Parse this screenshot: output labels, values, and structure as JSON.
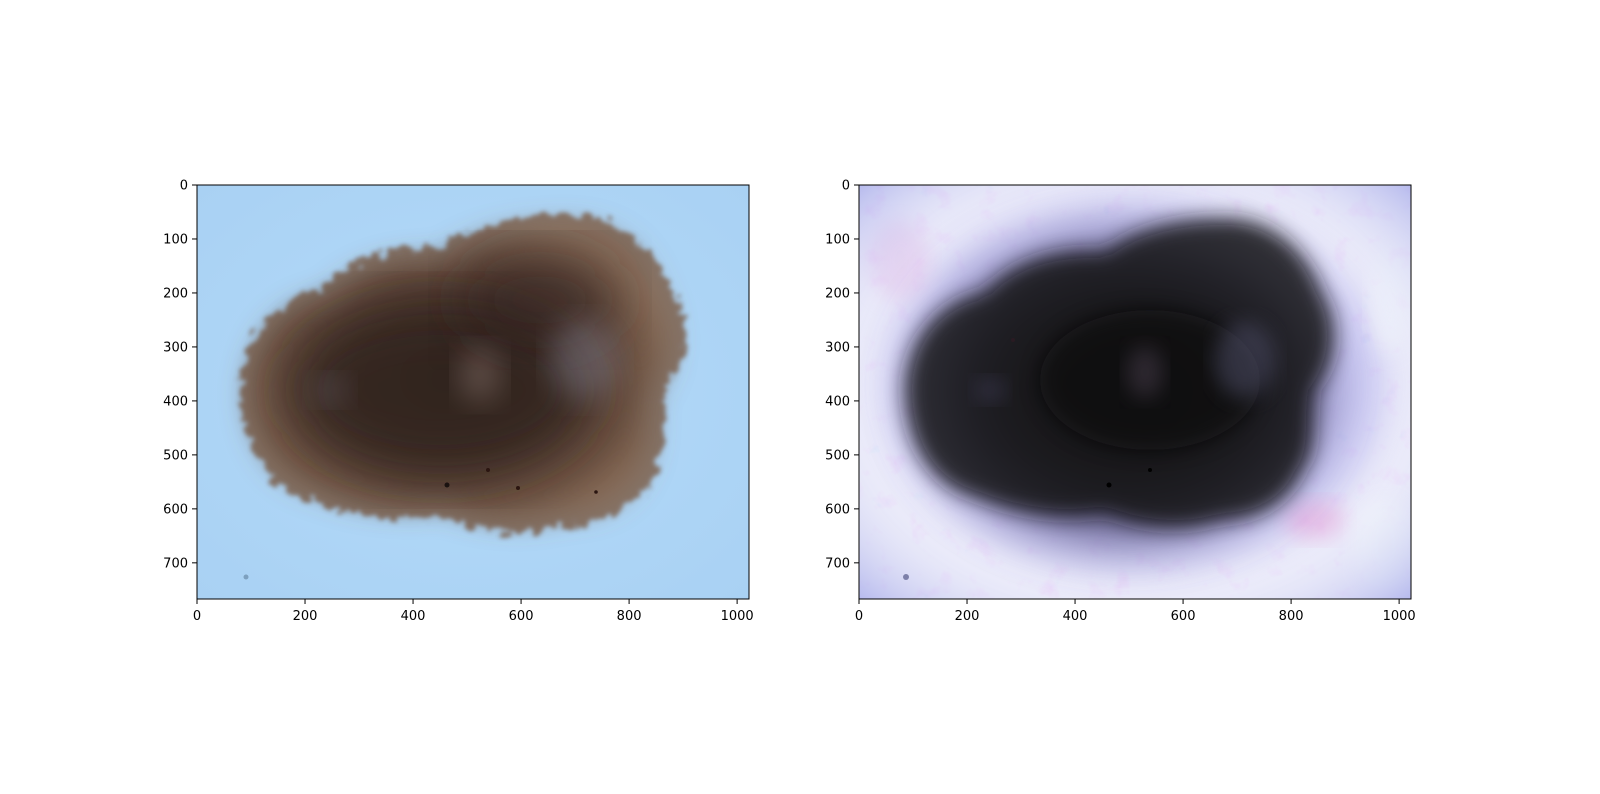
{
  "figure": {
    "panels": [
      {
        "id": "original",
        "x_ticks": [
          "0",
          "200",
          "400",
          "600",
          "800",
          "1000"
        ],
        "y_ticks": [
          "0",
          "100",
          "200",
          "300",
          "400",
          "500",
          "600",
          "700"
        ],
        "xlim": [
          0,
          1022
        ],
        "ylim": [
          767,
          0
        ],
        "content": "dermoscopy image of a pigmented skin lesion on a light blue background"
      },
      {
        "id": "enhanced",
        "x_ticks": [
          "0",
          "200",
          "400",
          "600",
          "800",
          "1000"
        ],
        "y_ticks": [
          "0",
          "100",
          "200",
          "300",
          "400",
          "500",
          "600",
          "700"
        ],
        "xlim": [
          0,
          1022
        ],
        "ylim": [
          767,
          0
        ],
        "content": "contrast-enhanced version of the same lesion with a dark center and a mottled lavender / white background"
      }
    ],
    "colors": {
      "left_background": "#b3d9f9",
      "left_lesion_outer": "#8a6a55",
      "left_lesion_core": "#3d2b26",
      "right_background": "#e6e6f8",
      "right_mid": "#a9a7e8",
      "right_halo": "#6e6a95",
      "right_core": "#141018"
    }
  }
}
